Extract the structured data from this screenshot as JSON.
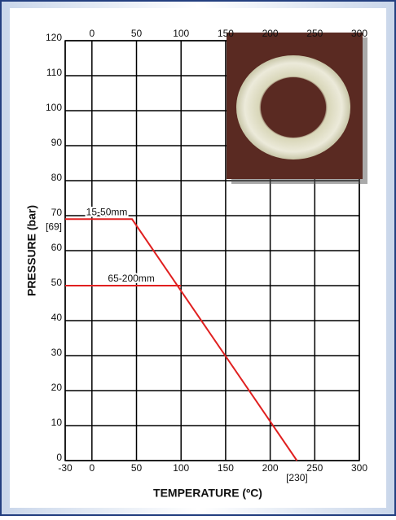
{
  "chart_data": {
    "type": "line",
    "x_label": "TEMPERATURE (ºC)",
    "y_label": "PRESSURE (bar)",
    "series": [
      {
        "name": "15-50mm",
        "color": "#e02020",
        "x": [
          -30,
          45,
          230
        ],
        "values": [
          69,
          69,
          0
        ]
      },
      {
        "name": "65-200mm",
        "color": "#e02020",
        "x": [
          -30,
          100
        ],
        "values": [
          50,
          50
        ]
      }
    ],
    "xlim": [
      -30,
      300
    ],
    "xticks": [
      -30,
      0,
      50,
      100,
      150,
      200,
      250,
      300
    ],
    "ylim": [
      0,
      120
    ],
    "yticks": [
      0,
      10,
      20,
      30,
      40,
      50,
      60,
      70,
      80,
      90,
      100,
      110,
      120
    ],
    "annotations": [
      "[69]",
      "[230]"
    ],
    "grid": true
  }
}
